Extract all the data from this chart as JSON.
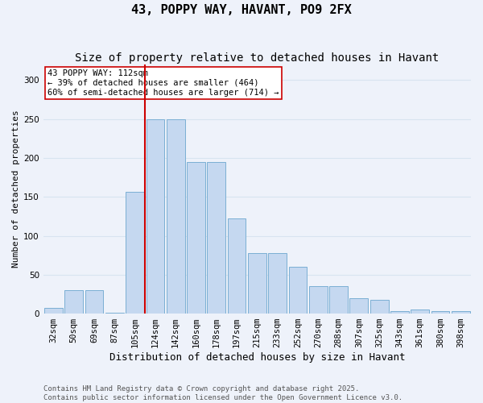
{
  "title": "43, POPPY WAY, HAVANT, PO9 2FX",
  "subtitle": "Size of property relative to detached houses in Havant",
  "xlabel": "Distribution of detached houses by size in Havant",
  "ylabel": "Number of detached properties",
  "annotation_line1": "43 POPPY WAY: 112sqm",
  "annotation_line2": "← 39% of detached houses are smaller (464)",
  "annotation_line3": "60% of semi-detached houses are larger (714) →",
  "footer_line1": "Contains HM Land Registry data © Crown copyright and database right 2025.",
  "footer_line2": "Contains public sector information licensed under the Open Government Licence v3.0.",
  "categories": [
    "32sqm",
    "50sqm",
    "69sqm",
    "87sqm",
    "105sqm",
    "124sqm",
    "142sqm",
    "160sqm",
    "178sqm",
    "197sqm",
    "215sqm",
    "233sqm",
    "252sqm",
    "270sqm",
    "288sqm",
    "307sqm",
    "325sqm",
    "343sqm",
    "361sqm",
    "380sqm",
    "398sqm"
  ],
  "values": [
    7,
    30,
    30,
    1,
    157,
    250,
    250,
    195,
    195,
    122,
    78,
    78,
    60,
    35,
    35,
    20,
    18,
    3,
    5,
    3,
    3
  ],
  "bar_color": "#c5d8f0",
  "bar_edge_color": "#7bafd4",
  "vline_x": 4.5,
  "vline_color": "#cc0000",
  "annotation_box_color": "#ffffff",
  "annotation_box_edge": "#cc0000",
  "background_color": "#eef2fa",
  "ylim": [
    0,
    320
  ],
  "yticks": [
    0,
    50,
    100,
    150,
    200,
    250,
    300
  ],
  "grid_color": "#d8e4f0",
  "title_fontsize": 11,
  "subtitle_fontsize": 10,
  "ylabel_fontsize": 8,
  "xlabel_fontsize": 9,
  "tick_fontsize": 7.5,
  "footer_fontsize": 6.5,
  "annotation_fontsize": 7.5
}
